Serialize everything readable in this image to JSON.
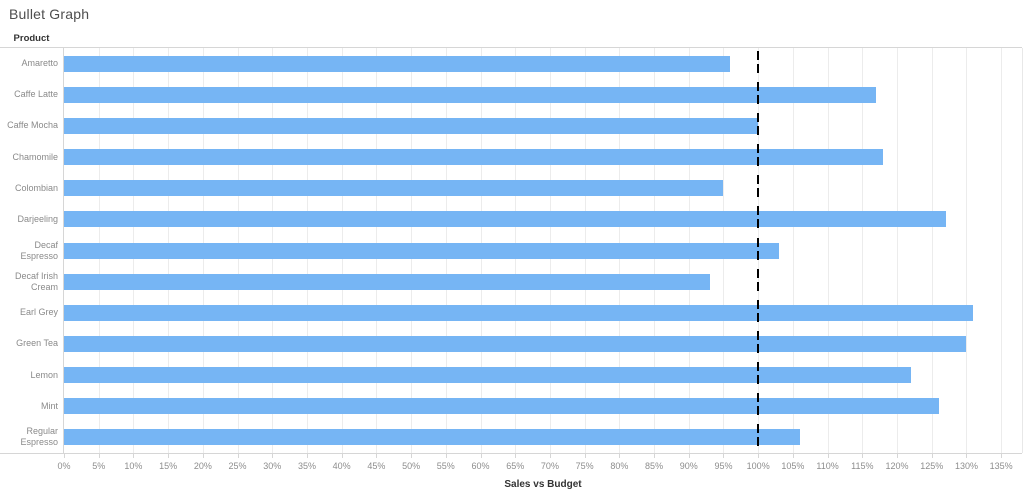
{
  "title": "Bullet Graph",
  "row_header": "Product",
  "axis": {
    "label": "Sales vs Budget",
    "tick_suffix": "%",
    "ticks": [
      0,
      5,
      10,
      15,
      20,
      25,
      30,
      35,
      40,
      45,
      50,
      55,
      60,
      65,
      70,
      75,
      80,
      85,
      90,
      95,
      100,
      105,
      110,
      115,
      120,
      125,
      130,
      135
    ],
    "domain_max": 138
  },
  "colors": {
    "bar": "#76b5f4",
    "reference_line": "#000000",
    "gridline": "#ececec",
    "axis_rule": "#d6d6d6",
    "tick_text": "#8d8d8d",
    "category_text": "#8a8a8a",
    "header_text": "#333333",
    "title_text": "#4e4e4e"
  },
  "chart_data": {
    "type": "bar",
    "orientation": "horizontal",
    "title": "Bullet Graph",
    "xlabel": "Sales vs Budget",
    "ylabel": "Product",
    "xlim": [
      0,
      138
    ],
    "x_tick_step": 5,
    "x_tick_format": "percent",
    "grid": "vertical",
    "legend": "none",
    "categories": [
      "Amaretto",
      "Caffe Latte",
      "Caffe Mocha",
      "Chamomile",
      "Colombian",
      "Darjeeling",
      "Decaf Espresso",
      "Decaf Irish Cream",
      "Earl Grey",
      "Green Tea",
      "Lemon",
      "Mint",
      "Regular Espresso"
    ],
    "values": [
      96,
      117,
      100,
      118,
      95,
      127,
      103,
      93,
      131,
      130,
      122,
      126,
      106
    ],
    "reference_line_value": 100,
    "reference_line_style": "dashed"
  }
}
